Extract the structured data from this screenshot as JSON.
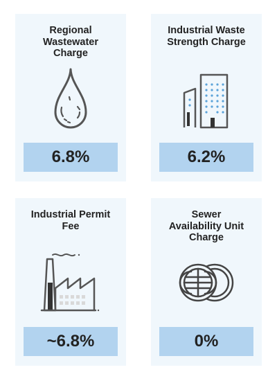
{
  "cards": [
    {
      "title": "Regional\nWastewater\nCharge",
      "value": "6.8%",
      "icon": "water-drop-icon"
    },
    {
      "title": "Industrial Waste\nStrength Charge",
      "value": "6.2%",
      "icon": "buildings-icon"
    },
    {
      "title": "Industrial Permit\nFee",
      "value": "~6.8%",
      "icon": "factory-icon"
    },
    {
      "title": "Sewer\nAvailability Unit\nCharge",
      "value": "0%",
      "icon": "coins-icon"
    }
  ],
  "colors": {
    "card_background": "#f0f7fc",
    "value_background": "#b2d3ef",
    "icon_stroke": "#555555",
    "accent_blue": "#5ba3d9"
  }
}
